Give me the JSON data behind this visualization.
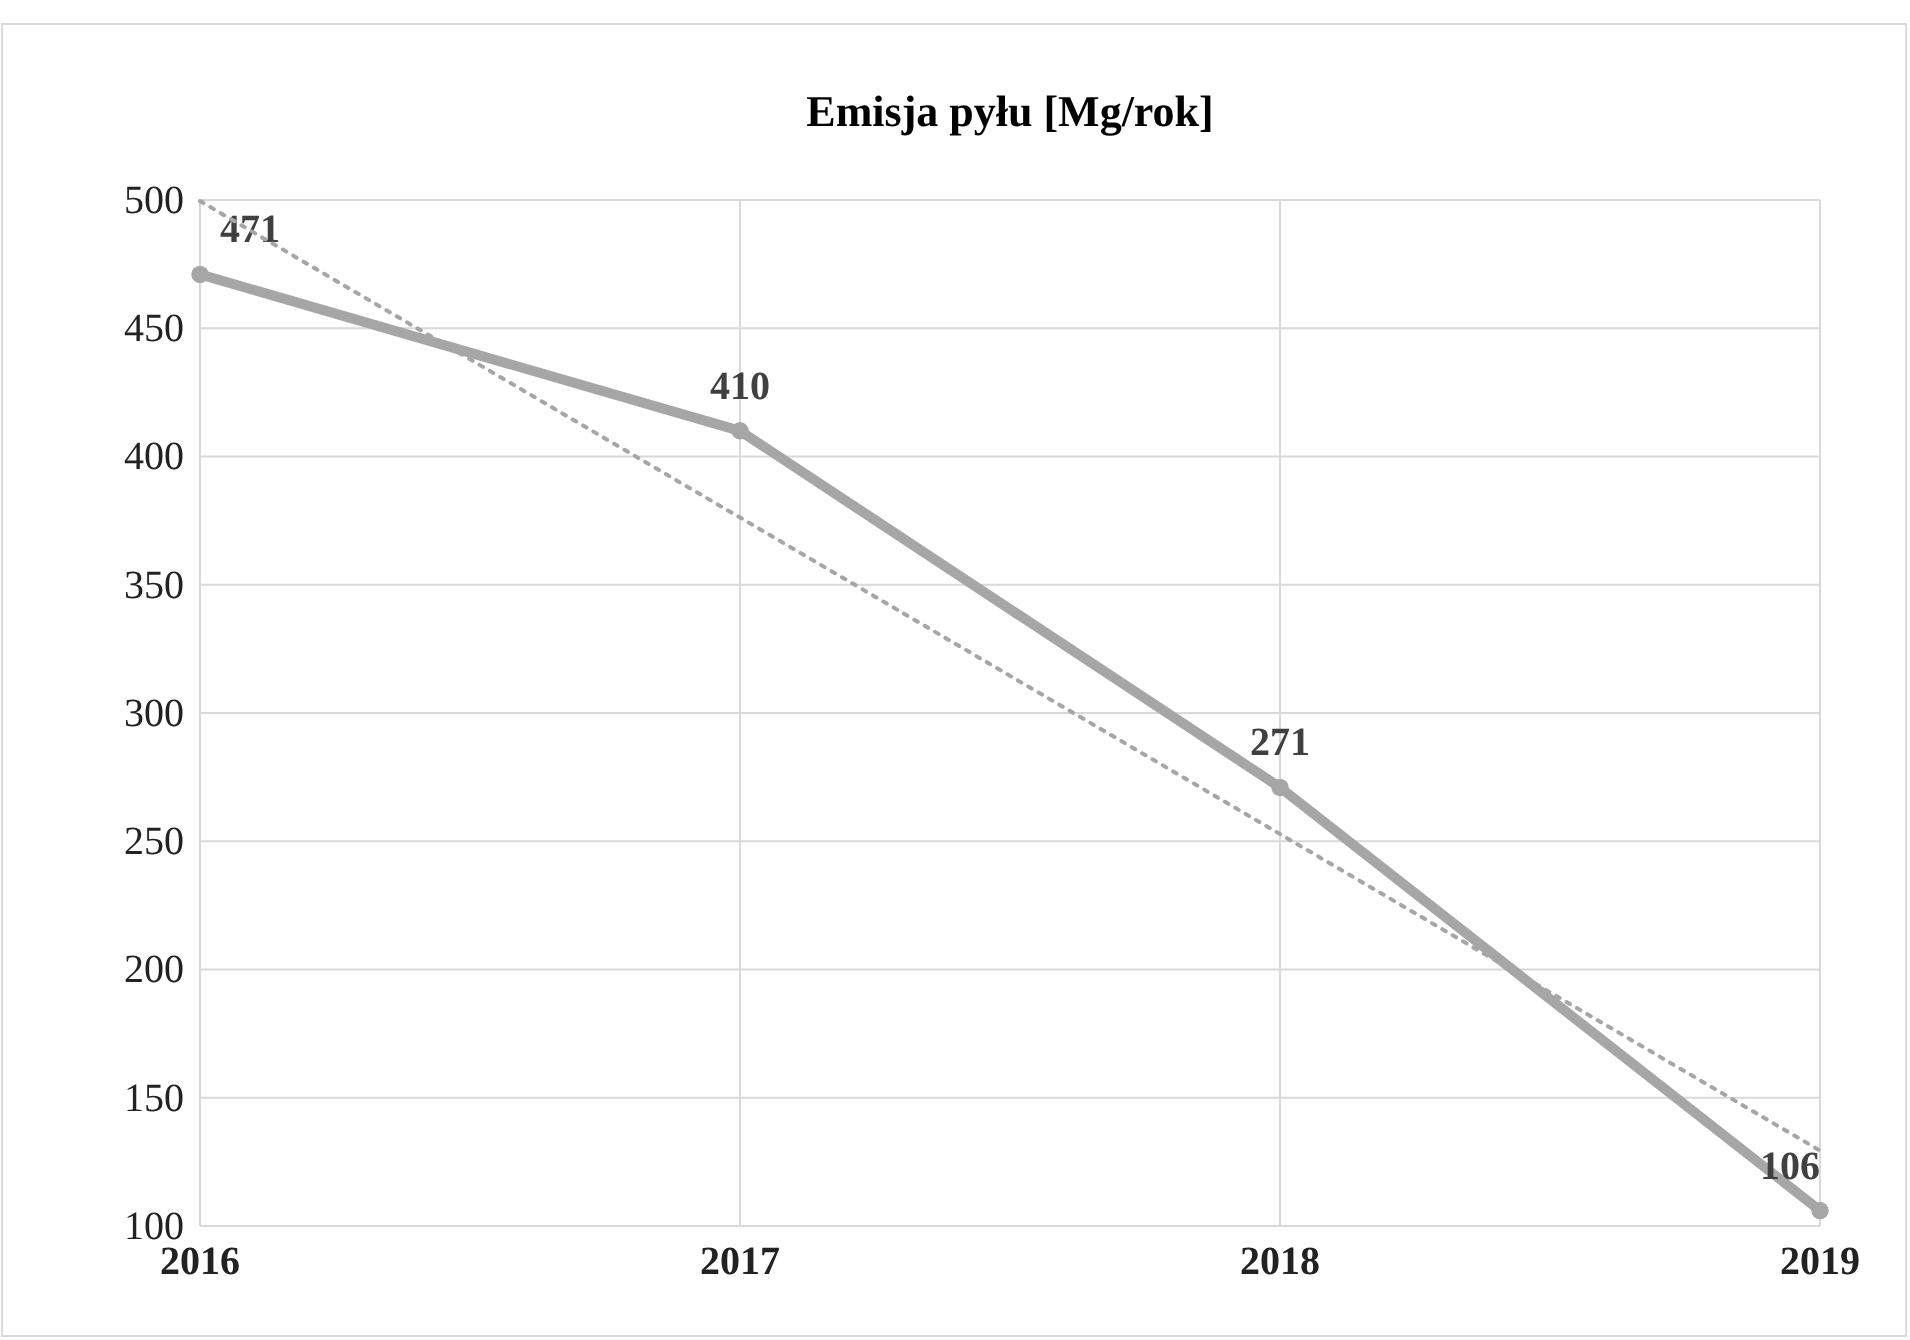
{
  "chart_data": {
    "type": "line",
    "title": "Emisja pyłu [Mg/rok]",
    "x": [
      2016,
      2017,
      2018,
      2019
    ],
    "xlim": [
      2016,
      2019
    ],
    "xticks": [
      2016,
      2017,
      2018,
      2019
    ],
    "ylim": [
      100,
      500
    ],
    "yticks": [
      100,
      150,
      200,
      250,
      300,
      350,
      400,
      450,
      500
    ],
    "series": [
      {
        "color": "#a6a6a6",
        "values": [
          471,
          410,
          271,
          106
        ],
        "marker": "circle",
        "line_style": "solid",
        "data_labels": true
      },
      {
        "color": "#a6a6a6",
        "x": [
          2016,
          2019
        ],
        "values": [
          499.6,
          129.4
        ],
        "marker": "none",
        "line_style": "dotted"
      }
    ],
    "grid": true
  }
}
